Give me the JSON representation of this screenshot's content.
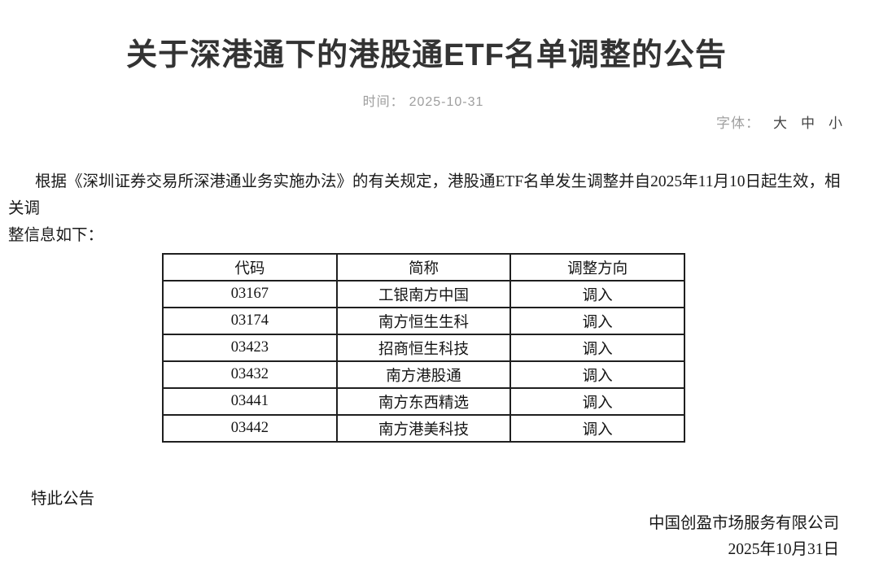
{
  "header": {
    "title": "关于深港通下的港股通ETF名单调整的公告",
    "time_label": "时间：",
    "time_value": "2025-10-31",
    "font_label": "字体：",
    "font_options": [
      "大",
      "中",
      "小"
    ]
  },
  "body": {
    "paragraph_lines": [
      "根据《深圳证券交易所深港通业务实施办法》的有关规定，港股通ETF名单发生调整并自2025年11月10日起生效，相关调",
      "整信息如下："
    ]
  },
  "table": {
    "headers": [
      "代码",
      "简称",
      "调整方向"
    ],
    "rows": [
      [
        "03167",
        "工银南方中国",
        "调入"
      ],
      [
        "03174",
        "南方恒生生科",
        "调入"
      ],
      [
        "03423",
        "招商恒生科技",
        "调入"
      ],
      [
        "03432",
        "南方港股通",
        "调入"
      ],
      [
        "03441",
        "南方东西精选",
        "调入"
      ],
      [
        "03442",
        "南方港美科技",
        "调入"
      ]
    ]
  },
  "footer": {
    "closing": "特此公告",
    "company": "中国创盈市场服务有限公司",
    "date": "2025年10月31日"
  },
  "colors": {
    "background": "#ffffff",
    "title_text": "#333333",
    "meta_text": "#9e9e9e",
    "body_text": "#1b1b1b",
    "table_border": "#1f1f1f"
  }
}
